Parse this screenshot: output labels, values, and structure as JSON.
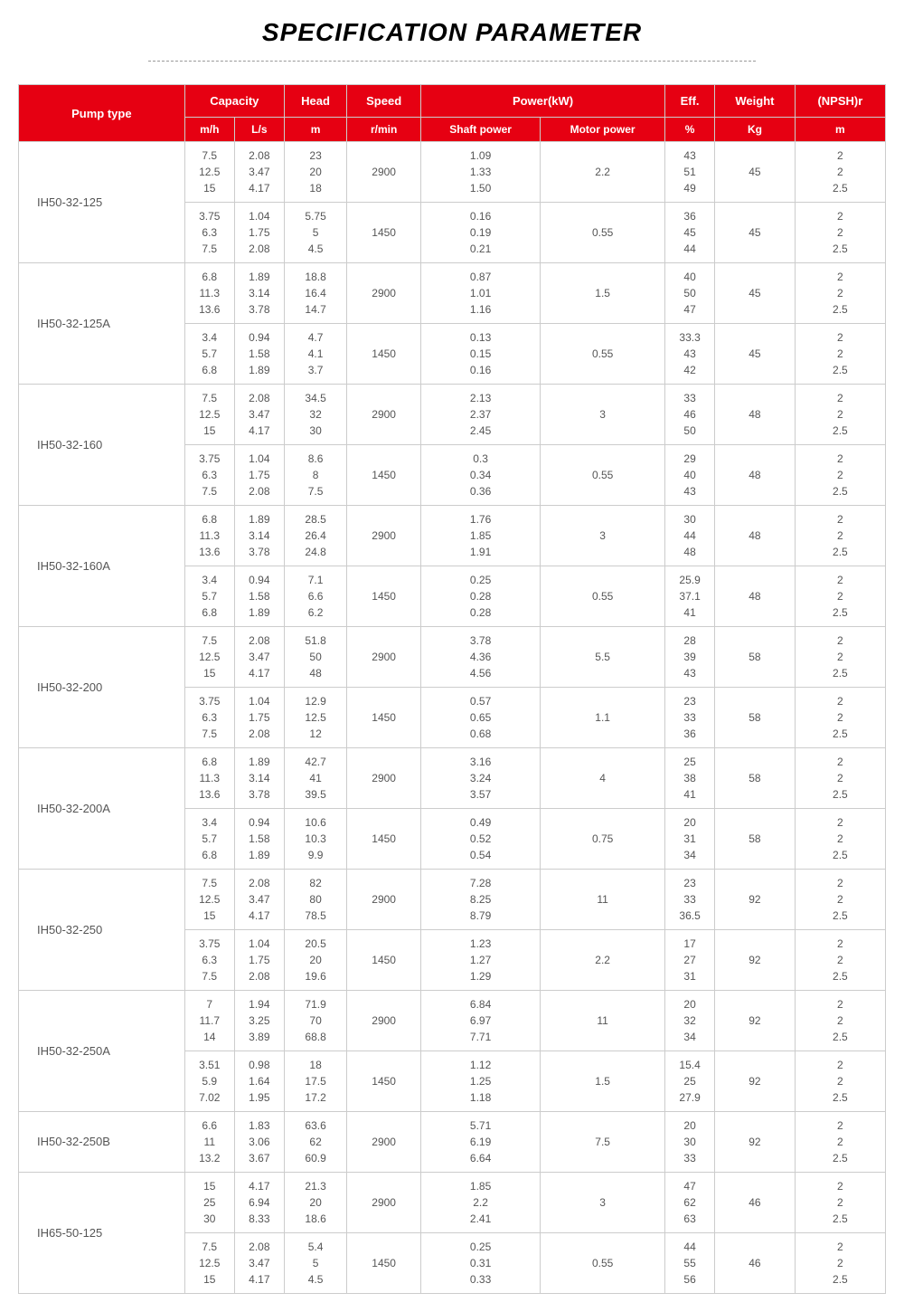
{
  "title": "SPECIFICATION PARAMETER",
  "headers": {
    "pump_type": "Pump type",
    "capacity": "Capacity",
    "capacity_mh": "m/h",
    "capacity_ls": "L/s",
    "head": "Head",
    "head_unit": "m",
    "speed": "Speed",
    "speed_unit": "r/min",
    "power": "Power(kW)",
    "shaft_power": "Shaft power",
    "motor_power": "Motor power",
    "eff": "Eff.",
    "eff_unit": "%",
    "weight": "Weight",
    "weight_unit": "Kg",
    "npsh": "(NPSH)r",
    "npsh_unit": "m"
  },
  "colors": {
    "header_bg": "#e60012",
    "header_text": "#ffffff",
    "border": "#cccccc",
    "cell_text": "#555555"
  },
  "pumps": [
    {
      "type": "IH50-32-125",
      "variants": [
        {
          "mh": "7.5\n12.5\n15",
          "ls": "2.08\n3.47\n4.17",
          "head": "23\n20\n18",
          "speed": "2900",
          "shaft": "1.09\n1.33\n1.50",
          "motor": "2.2",
          "eff": "43\n51\n49",
          "weight": "45",
          "npsh": "2\n2\n2.5"
        },
        {
          "mh": "3.75\n6.3\n7.5",
          "ls": "1.04\n1.75\n2.08",
          "head": "5.75\n5\n4.5",
          "speed": "1450",
          "shaft": "0.16\n0.19\n0.21",
          "motor": "0.55",
          "eff": "36\n45\n44",
          "weight": "45",
          "npsh": "2\n2\n2.5"
        }
      ]
    },
    {
      "type": "IH50-32-125A",
      "variants": [
        {
          "mh": "6.8\n11.3\n13.6",
          "ls": "1.89\n3.14\n3.78",
          "head": "18.8\n16.4\n14.7",
          "speed": "2900",
          "shaft": "0.87\n1.01\n1.16",
          "motor": "1.5",
          "eff": "40\n50\n47",
          "weight": "45",
          "npsh": "2\n2\n2.5"
        },
        {
          "mh": "3.4\n5.7\n6.8",
          "ls": "0.94\n1.58\n1.89",
          "head": "4.7\n4.1\n3.7",
          "speed": "1450",
          "shaft": "0.13\n0.15\n0.16",
          "motor": "0.55",
          "eff": "33.3\n43\n42",
          "weight": "45",
          "npsh": "2\n2\n2.5"
        }
      ]
    },
    {
      "type": "IH50-32-160",
      "variants": [
        {
          "mh": "7.5\n12.5\n15",
          "ls": "2.08\n3.47\n4.17",
          "head": "34.5\n32\n30",
          "speed": "2900",
          "shaft": "2.13\n2.37\n2.45",
          "motor": "3",
          "eff": "33\n46\n50",
          "weight": "48",
          "npsh": "2\n2\n2.5"
        },
        {
          "mh": "3.75\n6.3\n7.5",
          "ls": "1.04\n1.75\n2.08",
          "head": "8.6\n8\n7.5",
          "speed": "1450",
          "shaft": "0.3\n0.34\n0.36",
          "motor": "0.55",
          "eff": "29\n40\n43",
          "weight": "48",
          "npsh": "2\n2\n2.5"
        }
      ]
    },
    {
      "type": "IH50-32-160A",
      "variants": [
        {
          "mh": "6.8\n11.3\n13.6",
          "ls": "1.89\n3.14\n3.78",
          "head": "28.5\n26.4\n24.8",
          "speed": "2900",
          "shaft": "1.76\n1.85\n1.91",
          "motor": "3",
          "eff": "30\n44\n48",
          "weight": "48",
          "npsh": "2\n2\n2.5"
        },
        {
          "mh": "3.4\n5.7\n6.8",
          "ls": "0.94\n1.58\n1.89",
          "head": "7.1\n6.6\n6.2",
          "speed": "1450",
          "shaft": "0.25\n0.28\n0.28",
          "motor": "0.55",
          "eff": "25.9\n37.1\n41",
          "weight": "48",
          "npsh": "2\n2\n2.5"
        }
      ]
    },
    {
      "type": "IH50-32-200",
      "variants": [
        {
          "mh": "7.5\n12.5\n15",
          "ls": "2.08\n3.47\n4.17",
          "head": "51.8\n50\n48",
          "speed": "2900",
          "shaft": "3.78\n4.36\n4.56",
          "motor": "5.5",
          "eff": "28\n39\n43",
          "weight": "58",
          "npsh": "2\n2\n2.5"
        },
        {
          "mh": "3.75\n6.3\n7.5",
          "ls": "1.04\n1.75\n2.08",
          "head": "12.9\n12.5\n12",
          "speed": "1450",
          "shaft": "0.57\n0.65\n0.68",
          "motor": "1.1",
          "eff": "23\n33\n36",
          "weight": "58",
          "npsh": "2\n2\n2.5"
        }
      ]
    },
    {
      "type": "IH50-32-200A",
      "variants": [
        {
          "mh": "6.8\n11.3\n13.6",
          "ls": "1.89\n3.14\n3.78",
          "head": "42.7\n41\n39.5",
          "speed": "2900",
          "shaft": "3.16\n3.24\n3.57",
          "motor": "4",
          "eff": "25\n38\n41",
          "weight": "58",
          "npsh": "2\n2\n2.5"
        },
        {
          "mh": "3.4\n5.7\n6.8",
          "ls": "0.94\n1.58\n1.89",
          "head": "10.6\n10.3\n9.9",
          "speed": "1450",
          "shaft": "0.49\n0.52\n0.54",
          "motor": "0.75",
          "eff": "20\n31\n34",
          "weight": "58",
          "npsh": "2\n2\n2.5"
        }
      ]
    },
    {
      "type": "IH50-32-250",
      "variants": [
        {
          "mh": "7.5\n12.5\n15",
          "ls": "2.08\n3.47\n4.17",
          "head": "82\n80\n78.5",
          "speed": "2900",
          "shaft": "7.28\n8.25\n8.79",
          "motor": "11",
          "eff": "23\n33\n36.5",
          "weight": "92",
          "npsh": "2\n2\n2.5"
        },
        {
          "mh": "3.75\n6.3\n7.5",
          "ls": "1.04\n1.75\n2.08",
          "head": "20.5\n20\n19.6",
          "speed": "1450",
          "shaft": "1.23\n1.27\n1.29",
          "motor": "2.2",
          "eff": "17\n27\n31",
          "weight": "92",
          "npsh": "2\n2\n2.5"
        }
      ]
    },
    {
      "type": "IH50-32-250A",
      "variants": [
        {
          "mh": "7\n11.7\n14",
          "ls": "1.94\n3.25\n3.89",
          "head": "71.9\n70\n68.8",
          "speed": "2900",
          "shaft": "6.84\n6.97\n7.71",
          "motor": "11",
          "eff": "20\n32\n34",
          "weight": "92",
          "npsh": "2\n2\n2.5"
        },
        {
          "mh": "3.51\n5.9\n7.02",
          "ls": "0.98\n1.64\n1.95",
          "head": "18\n17.5\n17.2",
          "speed": "1450",
          "shaft": "1.12\n1.25\n1.18",
          "motor": "1.5",
          "eff": "15.4\n25\n27.9",
          "weight": "92",
          "npsh": "2\n2\n2.5"
        }
      ]
    },
    {
      "type": "IH50-32-250B",
      "variants": [
        {
          "mh": "6.6\n11\n13.2",
          "ls": "1.83\n3.06\n3.67",
          "head": "63.6\n62\n60.9",
          "speed": "2900",
          "shaft": "5.71\n6.19\n6.64",
          "motor": "7.5",
          "eff": "20\n30\n33",
          "weight": "92",
          "npsh": "2\n2\n2.5"
        }
      ]
    },
    {
      "type": "IH65-50-125",
      "variants": [
        {
          "mh": "15\n25\n30",
          "ls": "4.17\n6.94\n8.33",
          "head": "21.3\n20\n18.6",
          "speed": "2900",
          "shaft": "1.85\n2.2\n2.41",
          "motor": "3",
          "eff": "47\n62\n63",
          "weight": "46",
          "npsh": "2\n2\n2.5"
        },
        {
          "mh": "7.5\n12.5\n15",
          "ls": "2.08\n3.47\n4.17",
          "head": "5.4\n5\n4.5",
          "speed": "1450",
          "shaft": "0.25\n0.31\n0.33",
          "motor": "0.55",
          "eff": "44\n55\n56",
          "weight": "46",
          "npsh": "2\n2\n2.5"
        }
      ]
    }
  ]
}
